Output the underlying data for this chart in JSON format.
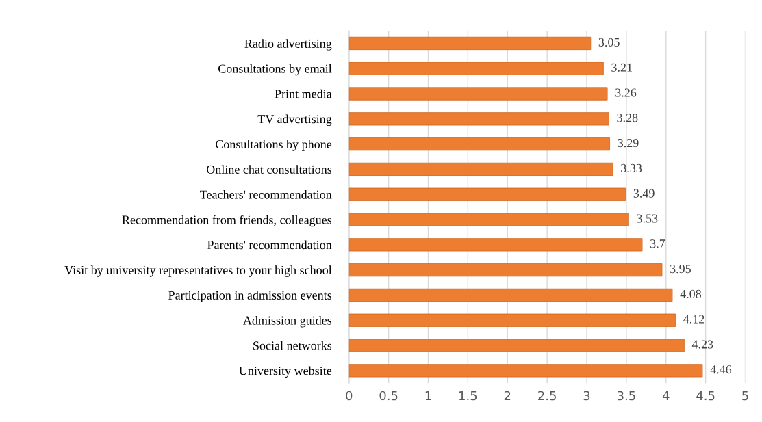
{
  "chart_data": {
    "type": "bar",
    "orientation": "horizontal",
    "categories": [
      "Radio advertising",
      "Consultations by email",
      "Print media",
      "TV advertising",
      "Consultations by phone",
      "Online chat consultations",
      "Teachers' recommendation",
      "Recommendation from friends, colleagues",
      "Parents' recommendation",
      "Visit by university representatives to your high school",
      "Participation in admission events",
      "Admission guides",
      "Social networks",
      "University website"
    ],
    "values": [
      3.05,
      3.21,
      3.26,
      3.28,
      3.29,
      3.33,
      3.49,
      3.53,
      3.7,
      3.95,
      4.08,
      4.12,
      4.23,
      4.46
    ],
    "color": "#ed7d31",
    "xlim": [
      0,
      5
    ],
    "xticks": [
      0,
      0.5,
      1,
      1.5,
      2,
      2.5,
      3,
      3.5,
      4,
      4.5,
      5
    ],
    "grid": "x",
    "data_labels": true,
    "legend": false
  }
}
